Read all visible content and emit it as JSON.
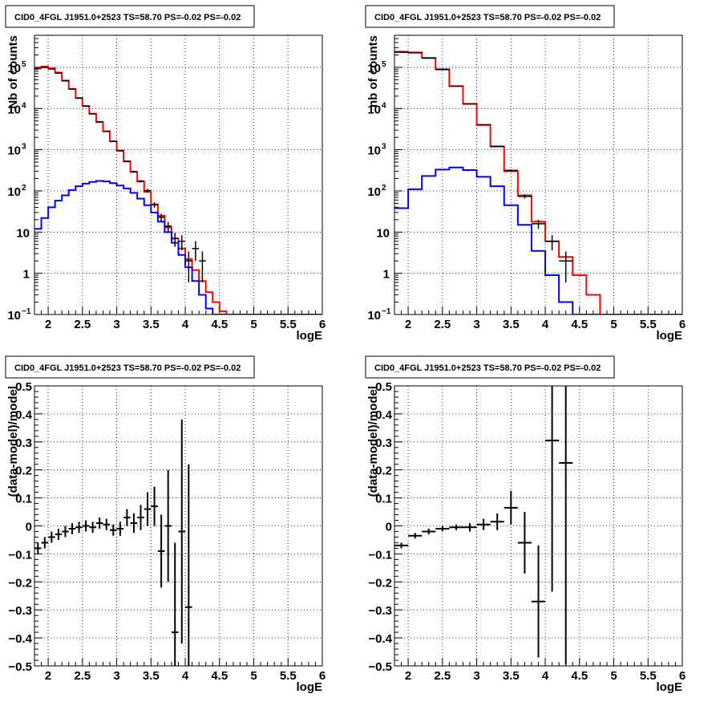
{
  "panels": [
    {
      "id": "pA",
      "title": "CID0_4FGL J1951.0+2523 TS=58.70 PS=-0.02 PS=-0.02",
      "xlabel": "logE",
      "ylabel": "Nb of counts",
      "type": "hist_log",
      "xlim": [
        1.8,
        6.0
      ],
      "ylim_log": [
        0.1,
        600000
      ],
      "xticks": [
        "2",
        "2.5",
        "3",
        "3.5",
        "4",
        "4.5",
        "5",
        "5.5",
        "6"
      ],
      "xtick_values": [
        2,
        2.5,
        3,
        3.5,
        4,
        4.5,
        5,
        5.5,
        6
      ],
      "yticks": [
        {
          "label": "10",
          "sup": "−1",
          "value": 0.1
        },
        {
          "label": "1",
          "sup": "",
          "value": 1
        },
        {
          "label": "10",
          "sup": "",
          "value": 10
        },
        {
          "label": "10",
          "sup": "2",
          "value": 100
        },
        {
          "label": "10",
          "sup": "3",
          "value": 1000
        },
        {
          "label": "10",
          "sup": "4",
          "value": 10000
        },
        {
          "label": "10",
          "sup": "5",
          "value": 100000
        }
      ]
    },
    {
      "id": "pB",
      "title": "CID0_4FGL J1951.0+2523 TS=58.70 PS=-0.02 PS=-0.02",
      "xlabel": "logE",
      "ylabel": "nb of counts",
      "type": "hist_log",
      "xlim": [
        1.8,
        6.0
      ],
      "ylim_log": [
        0.1,
        600000
      ],
      "xticks": [
        "2",
        "2.5",
        "3",
        "3.5",
        "4",
        "4.5",
        "5",
        "5.5",
        "6"
      ],
      "xtick_values": [
        2,
        2.5,
        3,
        3.5,
        4,
        4.5,
        5,
        5.5,
        6
      ],
      "yticks": [
        {
          "label": "10",
          "sup": "−1",
          "value": 0.1
        },
        {
          "label": "1",
          "sup": "",
          "value": 1
        },
        {
          "label": "10",
          "sup": "",
          "value": 10
        },
        {
          "label": "10",
          "sup": "2",
          "value": 100
        },
        {
          "label": "10",
          "sup": "3",
          "value": 1000
        },
        {
          "label": "10",
          "sup": "4",
          "value": 10000
        },
        {
          "label": "10",
          "sup": "5",
          "value": 100000
        }
      ]
    },
    {
      "id": "pC",
      "title": "CID0_4FGL J1951.0+2523 TS=58.70 PS=-0.02 PS=-0.02",
      "xlabel": "logE",
      "ylabel": "(data-model)/model",
      "type": "residual",
      "xlim": [
        1.8,
        6.0
      ],
      "ylim": [
        -0.5,
        0.5
      ],
      "xticks": [
        "2",
        "2.5",
        "3",
        "3.5",
        "4",
        "4.5",
        "5",
        "5.5",
        "6"
      ],
      "xtick_values": [
        2,
        2.5,
        3,
        3.5,
        4,
        4.5,
        5,
        5.5,
        6
      ],
      "yticks": [
        "−0.5",
        "−0.4",
        "−0.3",
        "−0.2",
        "−0.1",
        "0",
        "0.1",
        "0.2",
        "0.3",
        "0.4",
        "0.5"
      ],
      "ytick_values": [
        -0.5,
        -0.4,
        -0.3,
        -0.2,
        -0.1,
        0,
        0.1,
        0.2,
        0.3,
        0.4,
        0.5
      ]
    },
    {
      "id": "pD",
      "title": "CID0_4FGL J1951.0+2523 TS=58.70 PS=-0.02 PS=-0.02",
      "xlabel": "logE",
      "ylabel": "(data-model)/model",
      "type": "residual",
      "xlim": [
        1.8,
        6.0
      ],
      "ylim": [
        -0.5,
        0.5
      ],
      "xticks": [
        "2",
        "2.5",
        "3",
        "3.5",
        "4",
        "4.5",
        "5",
        "5.5",
        "6"
      ],
      "xtick_values": [
        2,
        2.5,
        3,
        3.5,
        4,
        4.5,
        5,
        5.5,
        6
      ],
      "yticks": [
        "−0.5",
        "−0.4",
        "−0.3",
        "−0.2",
        "−0.1",
        "0",
        "0.1",
        "0.2",
        "0.3",
        "0.4",
        "0.5"
      ],
      "ytick_values": [
        -0.5,
        -0.4,
        -0.3,
        -0.2,
        -0.1,
        0,
        0.1,
        0.2,
        0.3,
        0.4,
        0.5
      ]
    }
  ],
  "colors": {
    "model_total": "#ff0000",
    "model_source": "#0000ff",
    "data": "#000000",
    "grid": "#000000"
  },
  "chart_data": [
    {
      "type": "line",
      "panel": "pA",
      "binning": "width 0.1 in logE from 1.8 to 6.0",
      "series": [
        {
          "x": [
            1.85,
            1.95,
            2.05,
            2.15,
            2.25,
            2.35,
            2.45,
            2.55,
            2.65,
            2.75,
            2.85,
            2.95,
            3.05,
            3.15,
            3.25,
            3.35,
            3.45,
            3.55,
            3.65,
            3.75,
            3.85,
            3.95,
            4.05,
            4.15,
            4.25,
            4.35,
            4.45,
            4.55,
            4.65
          ],
          "values": [
            100000,
            105000,
            95000,
            75000,
            48000,
            30000,
            18000,
            11500,
            7500,
            4700,
            2800,
            1600,
            950,
            520,
            290,
            170,
            95,
            47,
            25,
            13,
            7,
            4,
            2.2,
            1.2,
            0.65,
            0.35,
            0.2,
            0.12,
            0.07
          ]
        },
        {
          "x": [
            1.85,
            1.95,
            2.05,
            2.15,
            2.25,
            2.35,
            2.45,
            2.55,
            2.65,
            2.75,
            2.85,
            2.95,
            3.05,
            3.15,
            3.25,
            3.35,
            3.45,
            3.55,
            3.65,
            3.75,
            3.85,
            3.95,
            4.05,
            4.15,
            4.25,
            4.35
          ],
          "values": [
            12,
            22,
            40,
            58,
            78,
            105,
            130,
            150,
            165,
            175,
            170,
            155,
            135,
            115,
            90,
            65,
            45,
            30,
            18,
            10,
            5.5,
            2.8,
            1.4,
            0.65,
            0.3,
            0.14
          ]
        },
        {
          "x": [
            1.85,
            1.95,
            2.05,
            2.15,
            2.25,
            2.35,
            2.45,
            2.55,
            2.65,
            2.75,
            2.85,
            2.95,
            3.05,
            3.15,
            3.25,
            3.35,
            3.45,
            3.55,
            3.65,
            3.75,
            3.85,
            3.95,
            4.05,
            4.15,
            4.25
          ],
          "values": [
            93000,
            99000,
            91000,
            72000,
            47000,
            29500,
            17800,
            11400,
            7450,
            4750,
            2790,
            1595,
            945,
            525,
            292,
            173,
            102,
            46,
            23,
            14,
            7,
            6,
            2,
            4,
            2
          ],
          "errors": [
            300,
            310,
            300,
            270,
            220,
            170,
            130,
            105,
            85,
            68,
            52,
            40,
            30,
            23,
            17,
            13,
            10,
            7,
            5,
            3.7,
            2.6,
            2.4,
            1.4,
            2,
            1.4
          ]
        }
      ]
    },
    {
      "type": "line",
      "panel": "pB",
      "binning": "width 0.2 in logE from 1.8 to 6.0",
      "series": [
        {
          "x": [
            1.9,
            2.1,
            2.3,
            2.5,
            2.7,
            2.9,
            3.1,
            3.3,
            3.5,
            3.7,
            3.9,
            4.1,
            4.3,
            4.5,
            4.7,
            4.9
          ],
          "values": [
            240000,
            230000,
            170000,
            90000,
            35000,
            13000,
            4000,
            1200,
            300,
            78,
            18,
            6,
            2.5,
            0.9,
            0.3,
            0.07
          ]
        },
        {
          "x": [
            1.9,
            2.1,
            2.3,
            2.5,
            2.7,
            2.9,
            3.1,
            3.3,
            3.5,
            3.7,
            3.9,
            4.1,
            4.3,
            4.5
          ],
          "values": [
            38,
            110,
            230,
            330,
            370,
            320,
            220,
            130,
            45,
            15,
            3.5,
            0.9,
            0.2,
            0.05
          ]
        },
        {
          "x": [
            1.9,
            2.1,
            2.3,
            2.5,
            2.7,
            2.9,
            3.1,
            3.3,
            3.5,
            3.7,
            3.9,
            4.1,
            4.3
          ],
          "values": [
            232000,
            225000,
            167000,
            88000,
            35000,
            13000,
            4050,
            1210,
            315,
            74,
            16,
            6,
            2
          ],
          "errors": [
            480,
            470,
            410,
            300,
            190,
            115,
            65,
            35,
            18,
            8.6,
            4,
            2.4,
            1.4
          ]
        }
      ]
    },
    {
      "type": "scatter",
      "panel": "pC",
      "x": [
        1.85,
        1.95,
        2.05,
        2.15,
        2.25,
        2.35,
        2.45,
        2.55,
        2.65,
        2.75,
        2.85,
        2.95,
        3.05,
        3.15,
        3.25,
        3.35,
        3.45,
        3.55,
        3.65,
        3.75,
        3.85,
        3.95,
        4.05
      ],
      "values": [
        -0.08,
        -0.06,
        -0.04,
        -0.03,
        -0.02,
        -0.01,
        -0.005,
        0.0,
        -0.005,
        0.01,
        0.005,
        -0.015,
        -0.01,
        0.03,
        0.01,
        0.03,
        0.06,
        0.07,
        -0.09,
        0.0,
        -0.38,
        -0.02,
        -0.29
      ],
      "errors": [
        0.02,
        0.02,
        0.02,
        0.02,
        0.02,
        0.02,
        0.02,
        0.02,
        0.02,
        0.02,
        0.02,
        0.02,
        0.025,
        0.03,
        0.035,
        0.045,
        0.06,
        0.07,
        0.13,
        0.2,
        0.32,
        0.4,
        0.51
      ],
      "xerr": 0.05
    },
    {
      "type": "scatter",
      "panel": "pD",
      "x": [
        1.9,
        2.1,
        2.3,
        2.5,
        2.7,
        2.9,
        3.1,
        3.3,
        3.5,
        3.7,
        3.9,
        4.1,
        4.3
      ],
      "values": [
        -0.07,
        -0.035,
        -0.02,
        -0.01,
        -0.005,
        -0.005,
        0.005,
        0.015,
        0.065,
        -0.06,
        -0.27,
        0.305,
        0.225
      ],
      "errors": [
        0.01,
        0.01,
        0.01,
        0.01,
        0.01,
        0.015,
        0.02,
        0.03,
        0.06,
        0.11,
        0.2,
        0.54,
        0.72
      ],
      "xerr": 0.1
    }
  ]
}
